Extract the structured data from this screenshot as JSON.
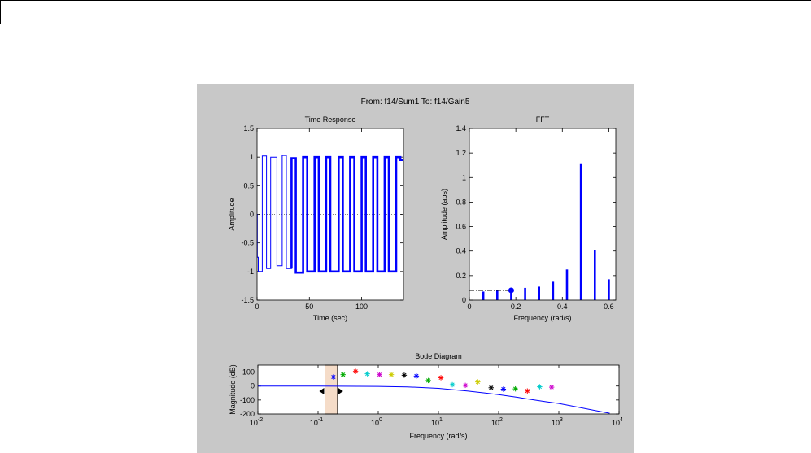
{
  "figure": {
    "title": "From: f14/Sum1  To: f14/Gain5"
  },
  "colors": {
    "figure_bg": "#c8c8c8",
    "axes_bg": "#ffffff",
    "signal_blue": "#0000ff",
    "selection_fill": "#f5dcc8"
  },
  "chart_data": [
    {
      "id": "time_response",
      "type": "line",
      "title": "Time Response",
      "xlabel": "Time (sec)",
      "ylabel": "Amplitude",
      "xlim": [
        0,
        140
      ],
      "ylim": [
        -1.5,
        1.5
      ],
      "xticks": [
        0,
        50,
        100
      ],
      "xtick_labels": [
        "0",
        "50",
        "100"
      ],
      "yticks": [
        -1.5,
        -1,
        -0.5,
        0,
        0.5,
        1,
        1.5
      ],
      "ytick_labels": [
        "-1.5",
        "-1",
        "-0.5",
        "0",
        "0.5",
        "1",
        "1.5"
      ],
      "grid": false,
      "series": [
        {
          "style": "thin",
          "x": [
            0,
            0.2,
            0.2,
            1.2,
            1.2,
            5,
            5,
            9,
            9,
            13,
            13,
            19,
            19,
            24,
            24,
            28,
            28,
            33,
            33
          ],
          "y": [
            0,
            0,
            -0.75,
            -0.75,
            -1.0,
            -1.0,
            1.02,
            1.02,
            -0.95,
            -0.95,
            1.0,
            1.0,
            -0.9,
            -0.9,
            1.03,
            1.03,
            -0.95,
            -0.95,
            0.98
          ]
        },
        {
          "style": "thick",
          "x": [
            33,
            33,
            37,
            37,
            44,
            44,
            48,
            48,
            55,
            55,
            59,
            59,
            66,
            66,
            70,
            70,
            78,
            78,
            82,
            82,
            89,
            89,
            93,
            93,
            100,
            100,
            104,
            104,
            111,
            111,
            115,
            115,
            122,
            122,
            126,
            126,
            133,
            133,
            137,
            137,
            140
          ],
          "y": [
            -0.95,
            0.98,
            0.98,
            -1.02,
            -1.02,
            1.0,
            1.0,
            -1.0,
            -1.0,
            1.0,
            1.0,
            -1.0,
            -1.0,
            1.0,
            1.0,
            -1.0,
            -1.0,
            1.0,
            1.0,
            -1.0,
            -1.0,
            1.0,
            1.0,
            -1.0,
            -1.0,
            1.0,
            1.0,
            -1.0,
            -1.0,
            1.0,
            1.0,
            -1.0,
            -1.0,
            1.0,
            1.0,
            -1.0,
            -1.0,
            1.0,
            1.0,
            0.95,
            0.95
          ]
        }
      ]
    },
    {
      "id": "fft",
      "type": "bar",
      "title": "FFT",
      "xlabel": "Frequency (rad/s)",
      "ylabel": "Amplitude (abs)",
      "xlim": [
        0,
        0.63
      ],
      "ylim": [
        0,
        1.4
      ],
      "xticks": [
        0,
        0.2,
        0.4,
        0.6
      ],
      "xtick_labels": [
        "0",
        "0.2",
        "0.4",
        "0.6"
      ],
      "yticks": [
        0,
        0.2,
        0.4,
        0.6,
        0.8,
        1,
        1.2,
        1.4
      ],
      "ytick_labels": [
        "0",
        "0.2",
        "0.4",
        "0.6",
        "0.8",
        "1",
        "1.2",
        "1.4"
      ],
      "grid": false,
      "x": [
        0.06,
        0.12,
        0.18,
        0.24,
        0.3,
        0.36,
        0.42,
        0.48,
        0.54,
        0.6
      ],
      "values": [
        0.07,
        0.08,
        0.08,
        0.1,
        0.11,
        0.15,
        0.25,
        1.11,
        0.41,
        0.17
      ],
      "marker": {
        "x": 0.18,
        "y": 0.08
      },
      "dashdot_level": 0.08
    },
    {
      "id": "bode",
      "type": "line",
      "title": "Bode Diagram",
      "xlabel": "Frequency  (rad/s)",
      "ylabel": "Magnitude (dB)",
      "xscale": "log",
      "xlim": [
        0.01,
        10000
      ],
      "ylim": [
        -200,
        150
      ],
      "xticks": [
        0.01,
        0.1,
        1,
        10,
        100,
        1000,
        10000
      ],
      "xtick_labels": [
        [
          "10",
          "-2"
        ],
        [
          "10",
          "-1"
        ],
        [
          "10",
          "0"
        ],
        [
          "10",
          "1"
        ],
        [
          "10",
          "2"
        ],
        [
          "10",
          "3"
        ],
        [
          "10",
          "4"
        ]
      ],
      "yticks": [
        -200,
        -100,
        0,
        100
      ],
      "ytick_labels": [
        "-200",
        "-100",
        "0",
        "100"
      ],
      "grid": false,
      "selection_band": [
        0.13,
        0.21
      ],
      "series": [
        {
          "style": "line",
          "x": [
            0.01,
            0.1,
            1,
            3,
            10,
            30,
            60,
            100,
            200,
            300,
            600,
            1000,
            2000,
            4000,
            7000
          ],
          "y": [
            0,
            0,
            -2,
            -6,
            -16,
            -35,
            -50,
            -62,
            -80,
            -92,
            -112,
            -125,
            -150,
            -175,
            -195
          ]
        },
        {
          "style": "markers",
          "x": [
            0.18,
            0.26,
            0.42,
            0.66,
            1.05,
            1.65,
            2.7,
            4.3,
            6.8,
            11,
            17,
            28,
            45,
            75,
            120,
            190,
            300,
            480,
            760
          ],
          "y": [
            65,
            82,
            105,
            88,
            82,
            82,
            78,
            72,
            40,
            60,
            10,
            5,
            30,
            -12,
            -22,
            -20,
            -35,
            -5,
            -8
          ],
          "colors": [
            "#0000ff",
            "#00aa00",
            "#ff0000",
            "#00cccc",
            "#cc00cc",
            "#cccc00",
            "#000000",
            "#0000ff",
            "#00aa00",
            "#ff0000",
            "#00cccc",
            "#cc00cc",
            "#cccc00",
            "#000000",
            "#0000ff",
            "#00aa00",
            "#ff0000",
            "#00cccc",
            "#cc00cc"
          ]
        }
      ]
    }
  ]
}
